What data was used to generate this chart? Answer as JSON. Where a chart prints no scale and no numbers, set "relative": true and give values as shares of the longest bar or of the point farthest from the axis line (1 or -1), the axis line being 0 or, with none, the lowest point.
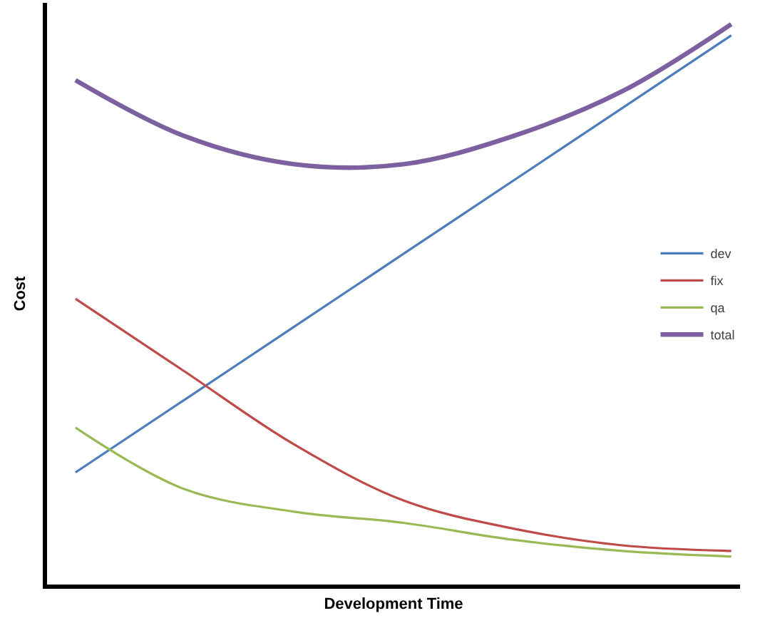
{
  "chart_data": {
    "type": "line",
    "xlabel": "Development Time",
    "ylabel": "Cost",
    "relative": true,
    "categories": [
      null,
      null,
      null,
      null,
      null,
      null,
      null
    ],
    "series": [
      {
        "name": "dev",
        "color": "#4a7ebb",
        "values": [
          0.2,
          0.33,
          0.46,
          0.59,
          0.72,
          0.85,
          0.98
        ]
      },
      {
        "name": "fix",
        "color": "#be4b48",
        "values": [
          0.51,
          0.38,
          0.25,
          0.15,
          0.1,
          0.07,
          0.06
        ]
      },
      {
        "name": "qa",
        "color": "#98b954",
        "values": [
          0.28,
          0.17,
          0.13,
          0.11,
          0.08,
          0.06,
          0.05
        ]
      },
      {
        "name": "total",
        "color": "#7d60a0",
        "values": [
          0.9,
          0.8,
          0.75,
          0.75,
          0.8,
          0.88,
          1.0
        ]
      }
    ],
    "tick_labels": false,
    "grid": false,
    "legend": "right",
    "marker": "none",
    "line_style": "solid"
  }
}
